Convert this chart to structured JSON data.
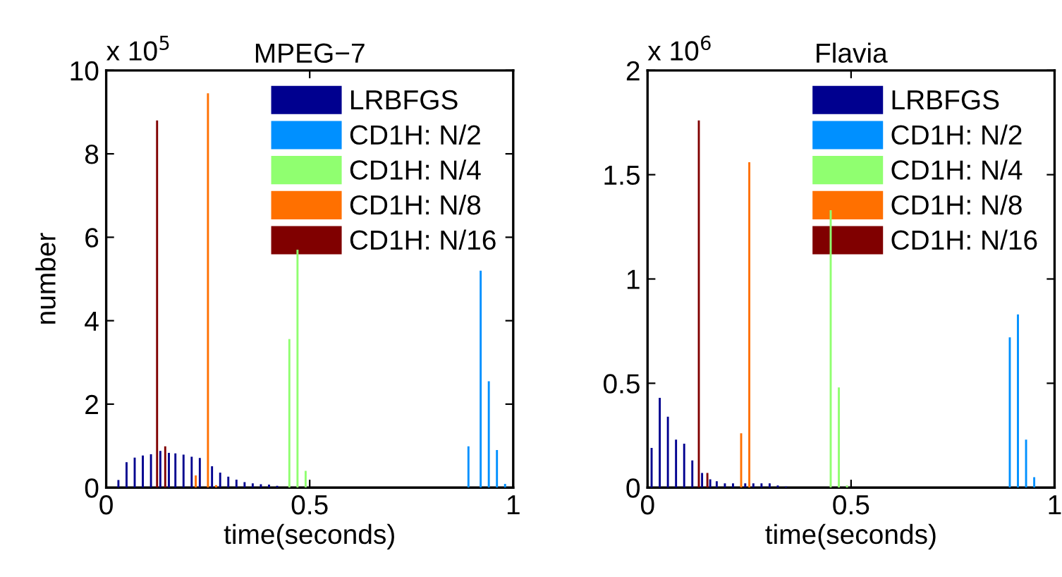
{
  "chart_data": [
    {
      "type": "bar",
      "title": "MPEG−7",
      "xlabel": "time(seconds)",
      "ylabel": "number",
      "annotations": [
        "x 10$^{5}$"
      ],
      "xlim": [
        0,
        1
      ],
      "xticks": [
        0,
        0.5,
        1
      ],
      "ylim": [
        0,
        10
      ],
      "yticks": [
        0,
        2,
        4,
        6,
        8,
        10
      ],
      "legend": "top right",
      "series": [
        {
          "name": "LRBFGS",
          "color": "#00008f",
          "x": [
            0.03,
            0.05,
            0.07,
            0.09,
            0.11,
            0.133,
            0.154,
            0.17,
            0.19,
            0.21,
            0.23,
            0.26,
            0.28,
            0.3,
            0.32,
            0.34,
            0.36,
            0.38,
            0.4,
            0.42
          ],
          "values": [
            0.18,
            0.61,
            0.72,
            0.77,
            0.8,
            0.88,
            0.83,
            0.82,
            0.79,
            0.74,
            0.71,
            0.51,
            0.36,
            0.26,
            0.19,
            0.13,
            0.1,
            0.08,
            0.07,
            0.04
          ]
        },
        {
          "name": "CD1H: N/2",
          "color": "#0090ff",
          "x": [
            0.89,
            0.92,
            0.94,
            0.96,
            0.98
          ],
          "values": [
            0.99,
            5.2,
            2.55,
            0.9,
            0.09
          ]
        },
        {
          "name": "CD1H: N/4",
          "color": "#90ff70",
          "x": [
            0.45,
            0.47,
            0.49
          ],
          "values": [
            3.56,
            5.7,
            0.4
          ]
        },
        {
          "name": "CD1H: N/8",
          "color": "#ff7000",
          "x": [
            0.22,
            0.25,
            0.27
          ],
          "values": [
            0.29,
            9.45,
            0.06
          ]
        },
        {
          "name": "CD1H: N/16",
          "color": "#800000",
          "x": [
            0.125,
            0.145
          ],
          "values": [
            8.8,
            0.99
          ]
        }
      ]
    },
    {
      "type": "bar",
      "title": "Flavia",
      "xlabel": "time(seconds)",
      "annotations": [
        "x 10$^{6}$"
      ],
      "xlim": [
        0,
        1
      ],
      "xticks": [
        0,
        0.5,
        1
      ],
      "ylim": [
        0,
        2
      ],
      "yticks": [
        0,
        0.5,
        1,
        1.5,
        2
      ],
      "legend": "top right",
      "series": [
        {
          "name": "LRBFGS",
          "color": "#00008f",
          "x": [
            0.01,
            0.03,
            0.05,
            0.07,
            0.09,
            0.11,
            0.134,
            0.154,
            0.17,
            0.19,
            0.21,
            0.24,
            0.26,
            0.28,
            0.3,
            0.32,
            0.34
          ],
          "values": [
            0.19,
            0.43,
            0.34,
            0.23,
            0.21,
            0.13,
            0.07,
            0.04,
            0.03,
            0.02,
            0.02,
            0.02,
            0.02,
            0.02,
            0.02,
            0.01,
            0.005
          ]
        },
        {
          "name": "CD1H: N/2",
          "color": "#0090ff",
          "x": [
            0.89,
            0.91,
            0.93,
            0.95
          ],
          "values": [
            0.72,
            0.83,
            0.23,
            0.05
          ]
        },
        {
          "name": "CD1H: N/4",
          "color": "#90ff70",
          "x": [
            0.45,
            0.47,
            0.49
          ],
          "values": [
            1.33,
            0.48,
            0.01
          ]
        },
        {
          "name": "CD1H: N/8",
          "color": "#ff7000",
          "x": [
            0.23,
            0.25
          ],
          "values": [
            0.26,
            1.56
          ]
        },
        {
          "name": "CD1H: N/16",
          "color": "#800000",
          "x": [
            0.126,
            0.147
          ],
          "values": [
            1.76,
            0.07
          ]
        }
      ]
    }
  ]
}
